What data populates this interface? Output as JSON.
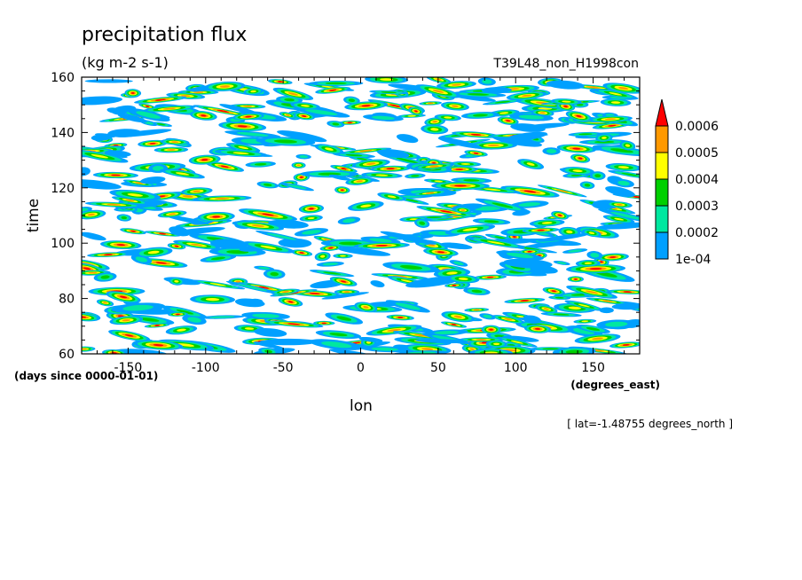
{
  "chart_data": {
    "type": "heatmap",
    "title": "precipitation flux",
    "units": "(kg m-2 s-1)",
    "experiment": "T39L48_non_H1998con",
    "xlabel": "lon",
    "x_units": "(degrees_east)",
    "ylabel": "time",
    "y_units": "(days since 0000-01-01)",
    "slice_note": "[ lat=-1.48755 degrees_north ]",
    "xlim": [
      -180,
      180
    ],
    "ylim": [
      60,
      160
    ],
    "x_ticks": [
      -150,
      -100,
      -50,
      0,
      50,
      100,
      150
    ],
    "x_tick_labels": [
      "-150",
      "-100",
      "-50",
      "0",
      "50",
      "100",
      "150"
    ],
    "y_ticks": [
      60,
      80,
      100,
      120,
      140,
      160
    ],
    "y_tick_labels": [
      "60",
      "80",
      "100",
      "120",
      "140",
      "160"
    ],
    "contour_levels": [
      0.0001,
      0.0002,
      0.0003,
      0.0004,
      0.0005,
      0.0006
    ],
    "colorbar_labels": [
      "1e-04",
      "0.0002",
      "0.0003",
      "0.0004",
      "0.0005",
      "0.0006"
    ],
    "colors": [
      "#00a0ff",
      "#00e8a0",
      "#00d000",
      "#ffff00",
      "#ff9900",
      "#ff0000"
    ],
    "pattern": "eastward-propagating streaks of precipitation scattered across all longitudes"
  }
}
